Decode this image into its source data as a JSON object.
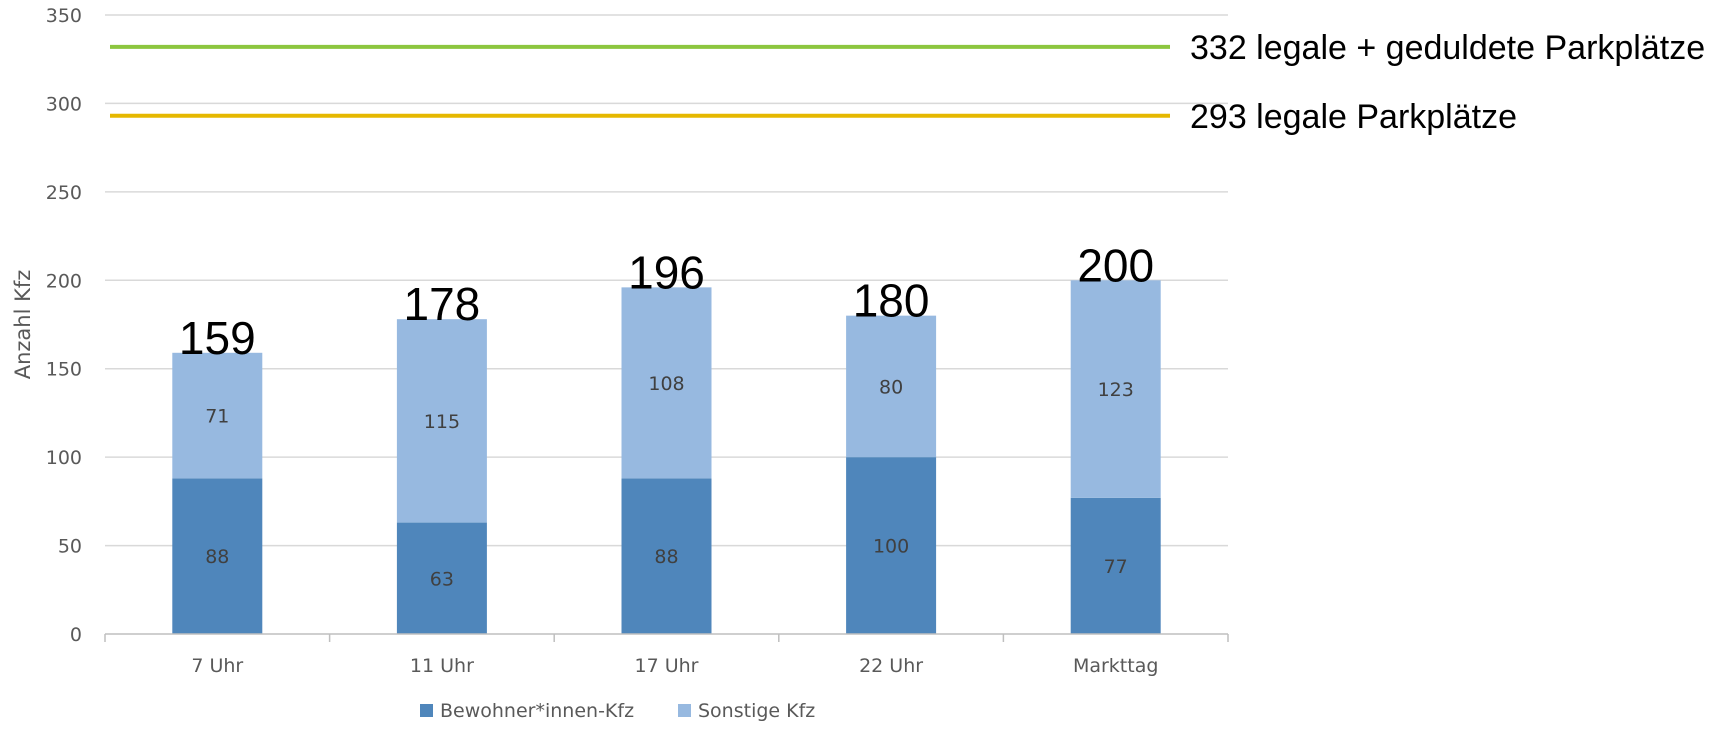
{
  "chart_data": {
    "type": "bar",
    "stacked": true,
    "categories": [
      "7 Uhr",
      "11 Uhr",
      "17 Uhr",
      "22 Uhr",
      "Markttag"
    ],
    "series": [
      {
        "name": "Bewohner*innen-Kfz",
        "values": [
          88,
          63,
          88,
          100,
          77
        ],
        "color": "#4F86BB"
      },
      {
        "name": "Sonstige Kfz",
        "values": [
          71,
          115,
          108,
          80,
          123
        ],
        "color": "#97B9E0"
      }
    ],
    "totals": [
      159,
      178,
      196,
      180,
      200
    ],
    "reference_lines": [
      {
        "value": 332,
        "label": "332 legale + geduldete Parkplätze",
        "color": "#8CC63F"
      },
      {
        "value": 293,
        "label": "293 legale Parkplätze",
        "color": "#E5B800"
      }
    ],
    "ylabel": "Anzahl Kfz",
    "xlabel": "",
    "ylim": [
      0,
      350
    ],
    "yticks": [
      0,
      50,
      100,
      150,
      200,
      250,
      300,
      350
    ],
    "grid": true,
    "legend_position": "bottom",
    "gridline_color": "#D9D9D9"
  }
}
